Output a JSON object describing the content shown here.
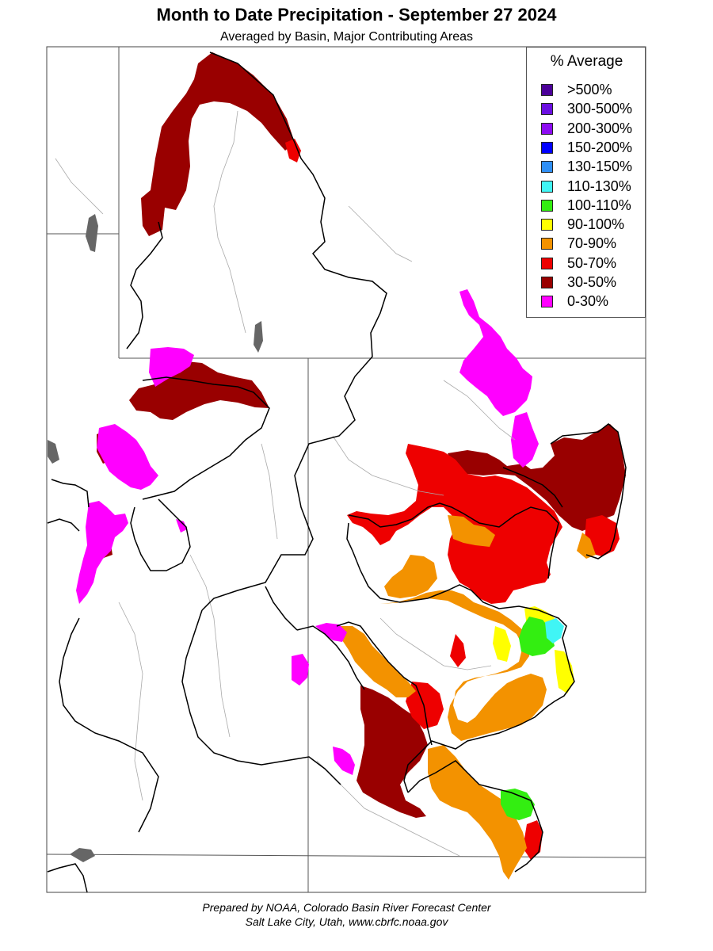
{
  "header": {
    "title": "Month to Date Precipitation - September 27 2024",
    "subtitle": "Averaged by Basin, Major Contributing Areas"
  },
  "legend": {
    "title": "% Average",
    "items": [
      {
        "label": ">500%",
        "color": "#4b0099"
      },
      {
        "label": "300-500%",
        "color": "#6a0fe0"
      },
      {
        "label": "200-300%",
        "color": "#8c0cf2"
      },
      {
        "label": "150-200%",
        "color": "#0000ff"
      },
      {
        "label": "130-150%",
        "color": "#2f8ff5"
      },
      {
        "label": "110-130%",
        "color": "#40f5f5"
      },
      {
        "label": "100-110%",
        "color": "#33ee11"
      },
      {
        "label": "90-100%",
        "color": "#ffff00"
      },
      {
        "label": "70-90%",
        "color": "#f39200"
      },
      {
        "label": "50-70%",
        "color": "#ee0000"
      },
      {
        "label": "30-50%",
        "color": "#990000"
      },
      {
        "label": "0-30%",
        "color": "#ff00ff"
      }
    ]
  },
  "footer": {
    "line1": "Prepared by NOAA, Colorado Basin River Forecast Center",
    "line2": "Salt Lake City, Utah, www.cbrfc.noaa.gov"
  }
}
